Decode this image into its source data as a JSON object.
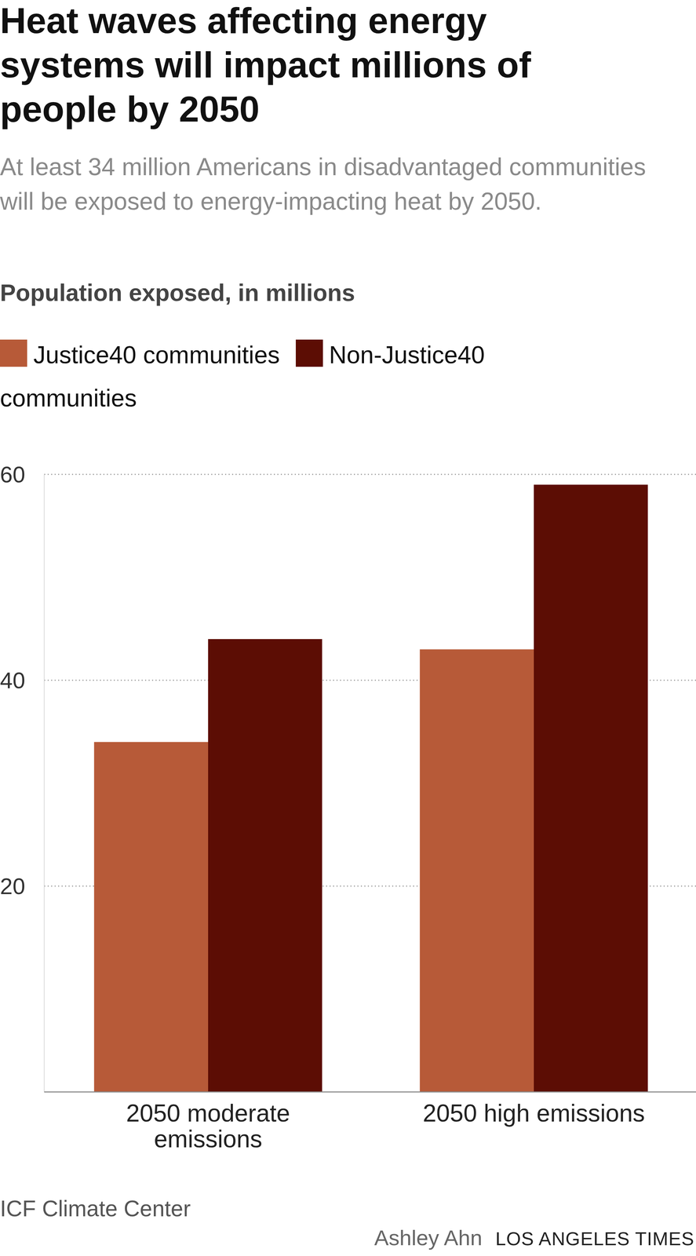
{
  "chart_data": {
    "type": "bar",
    "title": "Heat waves affecting energy systems will impact millions of people by 2050",
    "subtitle": "At least 34 million Americans in disadvantaged communities will be exposed to energy-impacting heat by 2050.",
    "y_label": "Population exposed, in millions",
    "categories": [
      "2050 moderate emissions",
      "2050 high emissions"
    ],
    "series": [
      {
        "name": "Justice40 communities",
        "color": "#b75a38",
        "values": [
          34,
          43
        ]
      },
      {
        "name": "Non-Justice40 communities",
        "color": "#5c0d04",
        "values": [
          44,
          59
        ]
      }
    ],
    "ylim": [
      0,
      60
    ],
    "yticks": [
      20,
      40,
      60
    ],
    "grid": true,
    "legend": "top",
    "source": "ICF Climate Center",
    "credit": "Ashley Ahn",
    "publisher": "LOS ANGELES TIMES"
  }
}
